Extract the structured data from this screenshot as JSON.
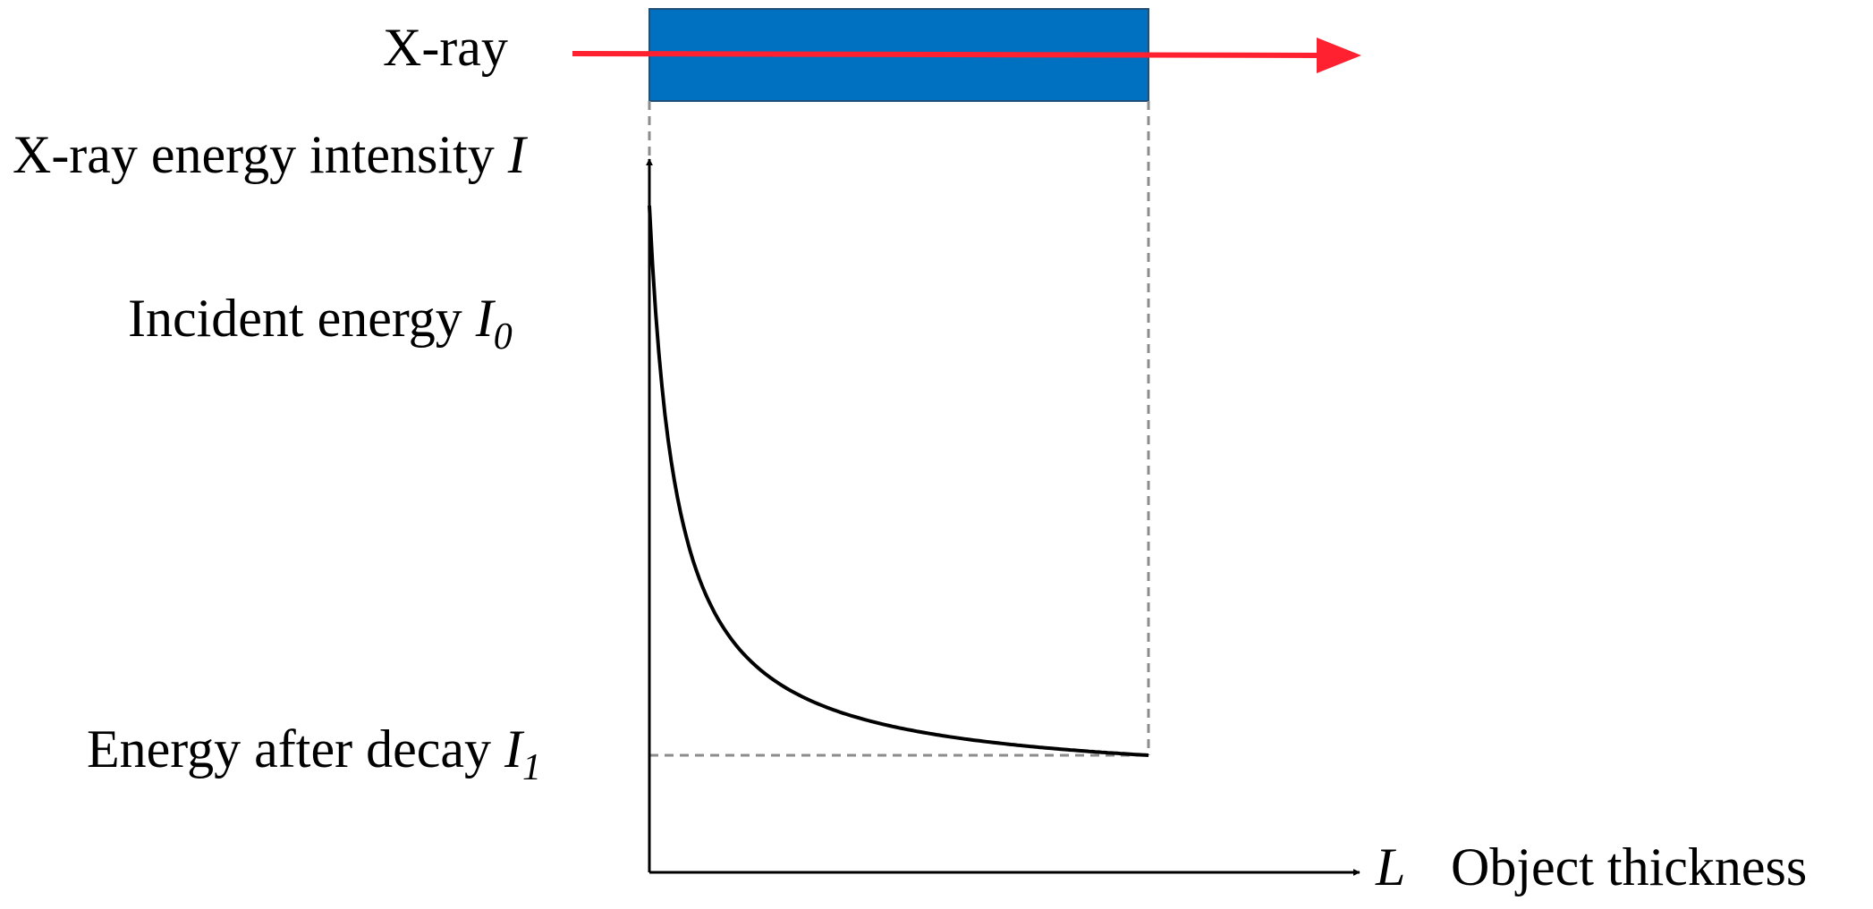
{
  "colors": {
    "object_fill": "#0070C0",
    "object_stroke": "#1f4e79",
    "beam": "#FF2030",
    "axis": "#000000",
    "curve": "#000000",
    "guide": "#8c8c8c"
  },
  "beam": {
    "label": "X-ray"
  },
  "y_axis": {
    "label_text": "X-ray energy intensity ",
    "label_symbol": "I"
  },
  "incident": {
    "text": "Incident energy ",
    "symbol": "I",
    "subscript": "0"
  },
  "decay": {
    "text": "Energy after decay ",
    "symbol": "I",
    "subscript": "1"
  },
  "x_axis": {
    "symbol": "L",
    "label": "Object thickness"
  }
}
